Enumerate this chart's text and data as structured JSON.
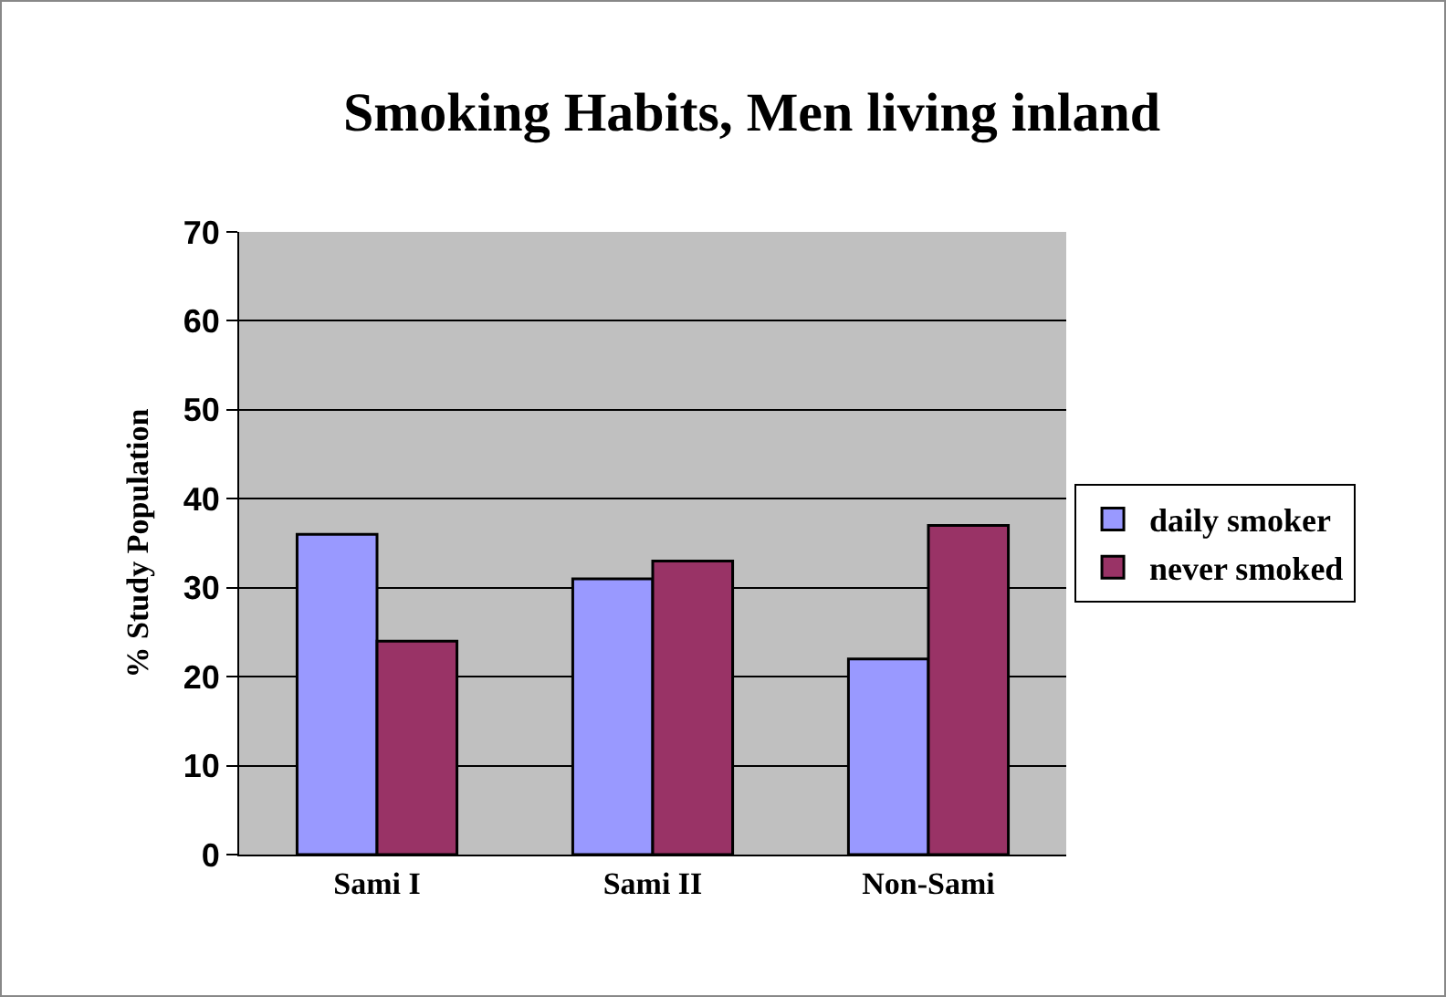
{
  "chart_data": {
    "type": "bar",
    "title": "Smoking Habits, Men living inland",
    "ylabel": "% Study Population",
    "categories": [
      "Sami I",
      "Sami II",
      "Non-Sami"
    ],
    "series": [
      {
        "name": "daily smoker",
        "color": "#9999ff",
        "values": [
          36,
          31,
          22
        ]
      },
      {
        "name": "never smoked",
        "color": "#993366",
        "values": [
          24,
          33,
          37
        ]
      }
    ],
    "ylim": [
      0,
      70
    ],
    "yticks": [
      0,
      10,
      20,
      30,
      40,
      50,
      60,
      70
    ],
    "grid": "y",
    "legend": "right"
  }
}
